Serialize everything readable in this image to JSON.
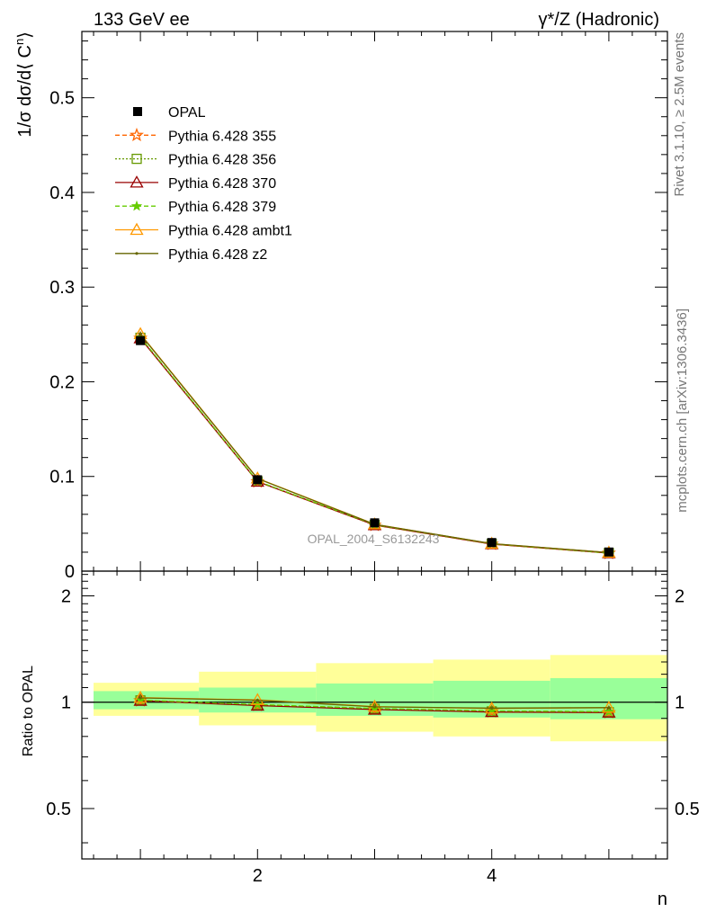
{
  "header": {
    "left": "133 GeV ee",
    "right": "γ*/Z (Hadronic)"
  },
  "side": {
    "rivet": "Rivet 3.1.10, ≥ 2.5M events",
    "mcplots": "mcplots.cern.ch [arXiv:1306.3436]"
  },
  "watermark": "OPAL_2004_S6132243",
  "colors": {
    "frame": "#000000",
    "band_inner": "#99ff99",
    "band_outer": "#ffff99",
    "text_gray": "#777777"
  },
  "chart_data": [
    {
      "type": "line",
      "ylabel_main": "1/σ dσ/d⟨ C",
      "ylabel_sup": "n",
      "ylabel_end": "⟩",
      "xlim": [
        0.5,
        5.5
      ],
      "ylim": [
        0,
        0.57
      ],
      "xticks": [
        2,
        4
      ],
      "yticks": [
        0,
        0.1,
        0.2,
        0.3,
        0.4,
        0.5
      ],
      "ytick_labels": [
        "0",
        "0.1",
        "0.2",
        "0.3",
        "0.4",
        "0.5"
      ],
      "x": [
        1,
        2,
        3,
        4,
        5
      ],
      "data": {
        "name": "OPAL",
        "values": [
          0.2435,
          0.0965,
          0.051,
          0.0302,
          0.0202
        ],
        "errors": [
          0.003,
          0.002,
          0.0015,
          0.001,
          0.001
        ]
      },
      "series": [
        {
          "name": "Pythia 6.428 355",
          "color": "#ff6600",
          "dash": "5,3",
          "marker": "star-open",
          "values": [
            0.246,
            0.0945,
            0.0485,
            0.0286,
            0.019
          ]
        },
        {
          "name": "Pythia 6.428 356",
          "color": "#669900",
          "dash": "2,2",
          "marker": "square-open",
          "values": [
            0.2465,
            0.0948,
            0.0488,
            0.0288,
            0.0191
          ]
        },
        {
          "name": "Pythia 6.428 370",
          "color": "#990000",
          "dash": "",
          "marker": "triangle-open",
          "values": [
            0.246,
            0.0945,
            0.0486,
            0.0285,
            0.019
          ]
        },
        {
          "name": "Pythia 6.428 379",
          "color": "#66cc00",
          "dash": "5,3",
          "marker": "star",
          "values": [
            0.247,
            0.095,
            0.049,
            0.0288,
            0.0191
          ]
        },
        {
          "name": "Pythia 6.428 ambt1",
          "color": "#ff9900",
          "dash": "",
          "marker": "triangle-open",
          "values": [
            0.2505,
            0.098,
            0.0495,
            0.029,
            0.0196
          ]
        },
        {
          "name": "Pythia 6.428 z2",
          "color": "#666600",
          "dash": "",
          "marker": "dot",
          "values": [
            0.25,
            0.0978,
            0.0494,
            0.0291,
            0.0196
          ]
        }
      ]
    },
    {
      "type": "line",
      "ylabel": "Ratio to OPAL",
      "xlabel": "n",
      "xlim": [
        0.5,
        5.5
      ],
      "ylim": [
        0.36,
        2.35
      ],
      "log_y": true,
      "xticks": [
        2,
        4
      ],
      "xtick_labels": [
        "2",
        "4"
      ],
      "yticks": [
        0.5,
        1,
        2
      ],
      "ytick_labels": [
        "0.5",
        "1",
        "2"
      ],
      "x": [
        1,
        2,
        3,
        4,
        5
      ],
      "bands": [
        {
          "x_low": 0.6,
          "x_high": 1.5,
          "inner": [
            0.955,
            1.075
          ],
          "outer": [
            0.915,
            1.135
          ]
        },
        {
          "x_low": 1.5,
          "x_high": 2.5,
          "inner": [
            0.935,
            1.1
          ],
          "outer": [
            0.86,
            1.22
          ]
        },
        {
          "x_low": 2.5,
          "x_high": 3.5,
          "inner": [
            0.915,
            1.13
          ],
          "outer": [
            0.825,
            1.29
          ]
        },
        {
          "x_low": 3.5,
          "x_high": 4.5,
          "inner": [
            0.905,
            1.15
          ],
          "outer": [
            0.8,
            1.32
          ]
        },
        {
          "x_low": 4.5,
          "x_high": 5.5,
          "inner": [
            0.895,
            1.17
          ],
          "outer": [
            0.775,
            1.36
          ]
        }
      ],
      "series": [
        {
          "name": "Pythia 6.428 355",
          "values": [
            1.01,
            0.98,
            0.955,
            0.94,
            0.935
          ]
        },
        {
          "name": "Pythia 6.428 356",
          "values": [
            1.012,
            0.982,
            0.958,
            0.942,
            0.937
          ]
        },
        {
          "name": "Pythia 6.428 370",
          "values": [
            1.01,
            0.978,
            0.953,
            0.938,
            0.935
          ]
        },
        {
          "name": "Pythia 6.428 379",
          "values": [
            1.014,
            0.985,
            0.96,
            0.945,
            0.94
          ]
        },
        {
          "name": "Pythia 6.428 ambt1",
          "values": [
            1.03,
            1.015,
            0.972,
            0.96,
            0.965
          ]
        },
        {
          "name": "Pythia 6.428 z2",
          "values": [
            1.028,
            1.013,
            0.97,
            0.962,
            0.965
          ]
        }
      ]
    }
  ]
}
